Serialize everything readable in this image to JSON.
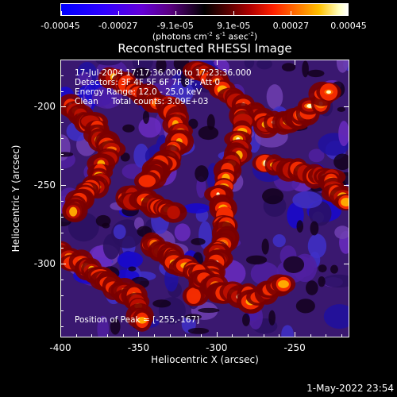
{
  "colorbar": {
    "tick_labels": [
      "-0.00045",
      "-0.00027",
      "-9.1e-05",
      "9.1e-05",
      "0.00027",
      "0.00045"
    ],
    "tick_values": [
      -0.00045,
      -0.00027,
      -9.1e-05,
      9.1e-05,
      0.00027,
      0.00045
    ],
    "units_main": "(photons cm",
    "units_exp1": "-2",
    "units_mid": " s",
    "units_exp2": "-1",
    "units_mid2": " asec",
    "units_exp3": "-2",
    "units_end": ")"
  },
  "title": "Reconstructed RHESSI Image",
  "info": {
    "line1": "17-Jul-2004 17:17:36.000 to 17:23:36.000",
    "line2": "Detectors: 3F 4F 5F 6F 7F 8F, Att 0",
    "line3": "Energy Range: 12.0 - 25.0 keV",
    "line4": "Clean     Total counts: 3.09E+03",
    "peak": "Position of Peak = [-255,-167]"
  },
  "axes": {
    "x_label": "Heliocentric X (arcsec)",
    "y_label": "Heliocentric Y (arcsec)",
    "x_ticks": [
      "-400",
      "-350",
      "-300",
      "-250"
    ],
    "x_tick_values": [
      -400,
      -350,
      -300,
      -250
    ],
    "y_ticks": [
      "-200",
      "-250",
      "-300"
    ],
    "y_tick_values": [
      -200,
      -250,
      -300
    ],
    "xlim": [
      -400,
      -215
    ],
    "ylim": [
      -347,
      -170
    ]
  },
  "footer": {
    "date": "1-May-2022 23:54"
  },
  "colors": {
    "low": "#0000ff",
    "mid": "#000000",
    "high": "#ffffff",
    "background": "#000000"
  }
}
